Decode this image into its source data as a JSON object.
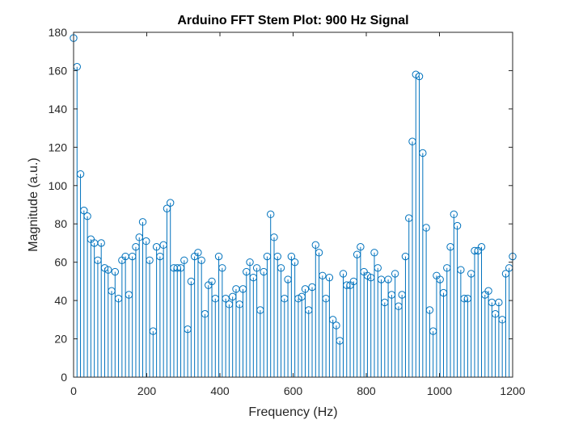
{
  "chart_data": {
    "type": "stem",
    "title": "Arduino FFT Stem Plot: 900 Hz Signal",
    "xlabel": "Frequency (Hz)",
    "ylabel": "Magnitude (a.u.)",
    "xlim": [
      0,
      1200
    ],
    "ylim": [
      0,
      180
    ],
    "xticks": [
      0,
      200,
      400,
      600,
      800,
      1000,
      1200
    ],
    "yticks": [
      0,
      20,
      40,
      60,
      80,
      100,
      120,
      140,
      160,
      180
    ],
    "xtick_labels": [
      "0",
      "200",
      "400",
      "600",
      "800",
      "1000",
      "1200"
    ],
    "ytick_labels": [
      "0",
      "20",
      "40",
      "60",
      "80",
      "100",
      "120",
      "140",
      "160",
      "180"
    ],
    "grid": false,
    "color": "#0072BD",
    "x": [
      0,
      9.45,
      18.9,
      28.35,
      37.8,
      47.24,
      56.69,
      66.14,
      75.59,
      85.04,
      94.49,
      103.94,
      113.39,
      122.83,
      132.28,
      141.73,
      151.18,
      160.63,
      170.08,
      179.53,
      188.98,
      198.43,
      207.87,
      217.32,
      226.77,
      236.22,
      245.67,
      255.12,
      264.57,
      274.02,
      283.46,
      292.91,
      302.36,
      311.81,
      321.26,
      330.71,
      340.16,
      349.61,
      359.06,
      368.5,
      377.95,
      387.4,
      396.85,
      406.3,
      415.75,
      425.2,
      434.65,
      444.09,
      453.54,
      462.99,
      472.44,
      481.89,
      491.34,
      500.79,
      510.24,
      519.69,
      529.13,
      538.58,
      548.03,
      557.48,
      566.93,
      576.38,
      585.83,
      595.28,
      604.72,
      614.17,
      623.62,
      633.07,
      642.52,
      651.97,
      661.42,
      670.87,
      680.31,
      689.76,
      699.21,
      708.66,
      718.11,
      727.56,
      737.01,
      746.46,
      755.91,
      765.35,
      774.8,
      784.25,
      793.7,
      803.15,
      812.6,
      822.05,
      831.5,
      840.94,
      850.39,
      859.84,
      869.29,
      878.74,
      888.19,
      897.64,
      907.09,
      916.54,
      925.98,
      935.43,
      944.88,
      954.33,
      963.78,
      973.23,
      982.68,
      992.13,
      1001.57,
      1011.02,
      1020.47,
      1029.92,
      1039.37,
      1048.82,
      1058.27,
      1067.72,
      1077.17,
      1086.61,
      1096.06,
      1105.51,
      1114.96,
      1124.41,
      1133.86,
      1143.31,
      1152.76,
      1162.2,
      1171.65,
      1181.1,
      1190.55,
      1200
    ],
    "values": [
      177,
      162,
      106,
      87,
      84,
      72,
      70,
      61,
      70,
      57,
      56,
      45,
      55,
      41,
      61,
      63,
      43,
      63,
      68,
      73,
      81,
      71,
      61,
      24,
      68,
      63,
      69,
      88,
      91,
      57,
      57,
      57,
      61,
      25,
      50,
      63,
      65,
      61,
      33,
      48,
      50,
      41,
      63,
      57,
      41,
      38,
      42,
      46,
      38,
      46,
      55,
      60,
      52,
      57,
      35,
      55,
      63,
      85,
      73,
      63,
      57,
      41,
      51,
      63,
      60,
      41,
      42,
      46,
      35,
      47,
      69,
      65,
      53,
      41,
      52,
      30,
      27,
      19,
      54,
      48,
      48,
      50,
      64,
      68,
      55,
      53,
      52,
      65,
      57,
      51,
      39,
      51,
      43,
      54,
      37,
      43,
      63,
      83,
      123,
      158,
      157,
      117,
      78,
      35,
      24,
      53,
      51,
      44,
      57,
      68,
      85,
      79,
      56,
      41,
      41,
      54,
      66,
      66,
      68,
      43,
      45,
      39,
      33,
      39,
      30,
      54,
      57,
      63
    ]
  }
}
